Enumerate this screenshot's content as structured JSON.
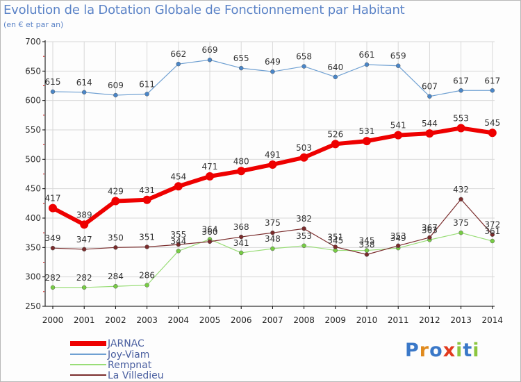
{
  "title": "Evolution de la Dotation Globale de Fonctionnement par Habitant",
  "subtitle": "(en € et par an)",
  "brand": "Proxiti",
  "colors": {
    "axis": "#000000",
    "grid": "#d8d8d8",
    "title": "#5b83c7",
    "minor_tick": "#cc0000",
    "label": "#333333"
  },
  "chart_data": {
    "type": "line",
    "title": "Evolution de la Dotation Globale de Fonctionnement par Habitant",
    "subtitle": "(en € et par an)",
    "xlabel": "",
    "ylabel": "",
    "x": [
      "2000",
      "2001",
      "2002",
      "2003",
      "2004",
      "2005",
      "2006",
      "2007",
      "2008",
      "2009",
      "2010",
      "2011",
      "2012",
      "2013",
      "2014"
    ],
    "ylim": [
      250,
      700
    ],
    "yticks": [
      250,
      300,
      350,
      400,
      450,
      500,
      550,
      600,
      650,
      700
    ],
    "grid": true,
    "legend": "bottom-left",
    "series": [
      {
        "name": "JARNAC",
        "color": "#ee0000",
        "marker_color": "#ee0000",
        "width": 6,
        "marker": 6,
        "values": [
          417,
          389,
          429,
          431,
          454,
          471,
          480,
          491,
          503,
          526,
          531,
          541,
          544,
          553,
          545
        ]
      },
      {
        "name": "Joy-Viam",
        "color": "#6fa0d2",
        "marker_color": "#4a86c8",
        "width": 1.2,
        "marker": 3,
        "values": [
          615,
          614,
          609,
          611,
          662,
          669,
          655,
          649,
          658,
          640,
          661,
          659,
          607,
          617,
          617
        ]
      },
      {
        "name": "Rempnat",
        "color": "#99dd77",
        "marker_color": "#77cc44",
        "width": 1.2,
        "marker": 3,
        "values": [
          282,
          282,
          284,
          286,
          344,
          364,
          341,
          348,
          353,
          345,
          345,
          349,
          363,
          375,
          361
        ]
      },
      {
        "name": "La Villedieu",
        "color": "#7a2c2c",
        "marker_color": "#7a2c2c",
        "width": 1.2,
        "marker": 3,
        "values": [
          349,
          347,
          350,
          351,
          355,
          360,
          368,
          375,
          382,
          351,
          338,
          353,
          367,
          432,
          372
        ]
      }
    ]
  }
}
